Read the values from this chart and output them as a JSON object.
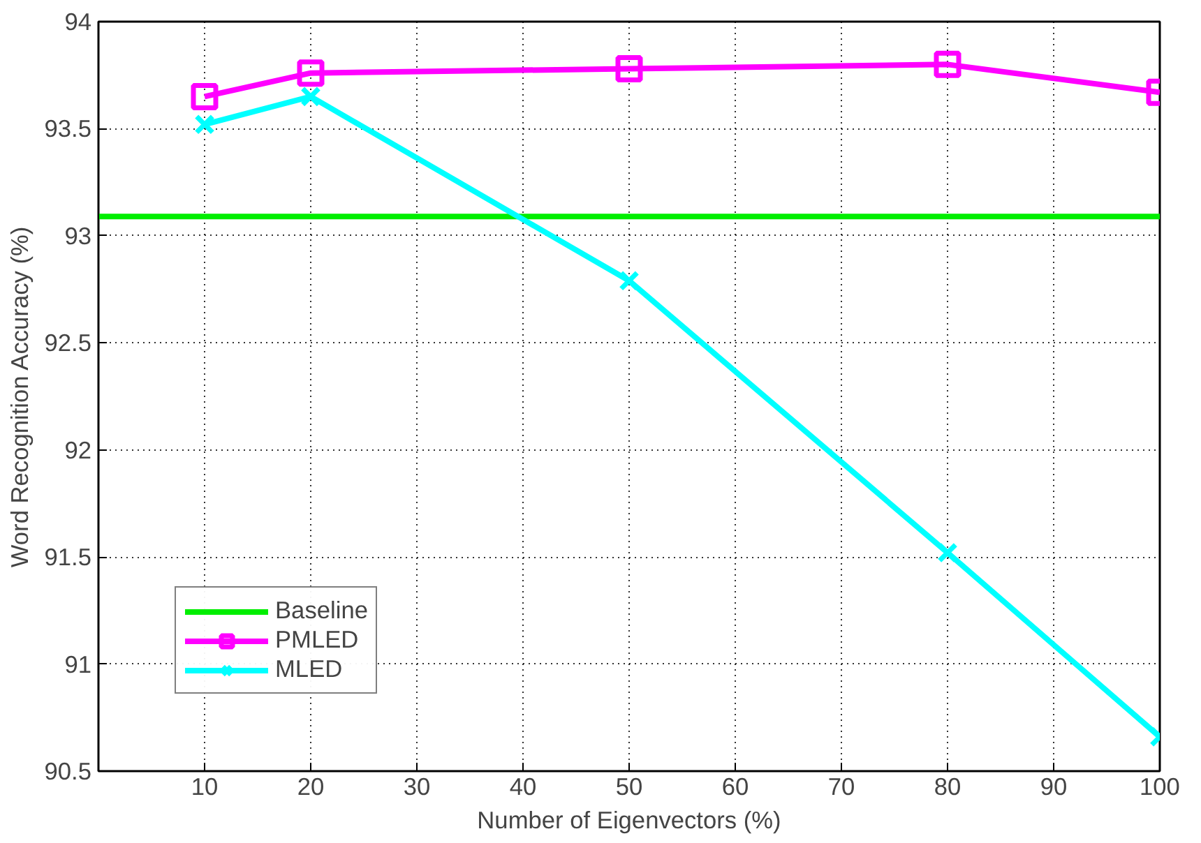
{
  "chart_data": {
    "type": "line",
    "xlabel": "Number of Eigenvectors (%)",
    "ylabel": "Word Recognition Accuracy (%)",
    "xlim": [
      0,
      100
    ],
    "xticks": [
      10,
      20,
      30,
      40,
      50,
      60,
      70,
      80,
      90,
      100
    ],
    "ylim": [
      90.5,
      94
    ],
    "yticks": [
      90.5,
      91,
      91.5,
      92,
      92.5,
      93,
      93.5,
      94
    ],
    "grid": true,
    "legend": "bottom left",
    "series": [
      {
        "name": "Baseline",
        "color": "#00ee00",
        "x": [
          0,
          100
        ],
        "values": [
          93.09,
          93.09
        ],
        "marker": "none"
      },
      {
        "name": "PMLED",
        "color": "#ff00ff",
        "x": [
          10,
          20,
          50,
          80,
          100
        ],
        "values": [
          93.65,
          93.76,
          93.78,
          93.8,
          93.67
        ],
        "marker": "square"
      },
      {
        "name": "MLED",
        "color": "#00ffff",
        "x": [
          10,
          20,
          50,
          80,
          100
        ],
        "values": [
          93.52,
          93.65,
          92.79,
          91.52,
          90.66
        ],
        "marker": "cross"
      }
    ]
  }
}
